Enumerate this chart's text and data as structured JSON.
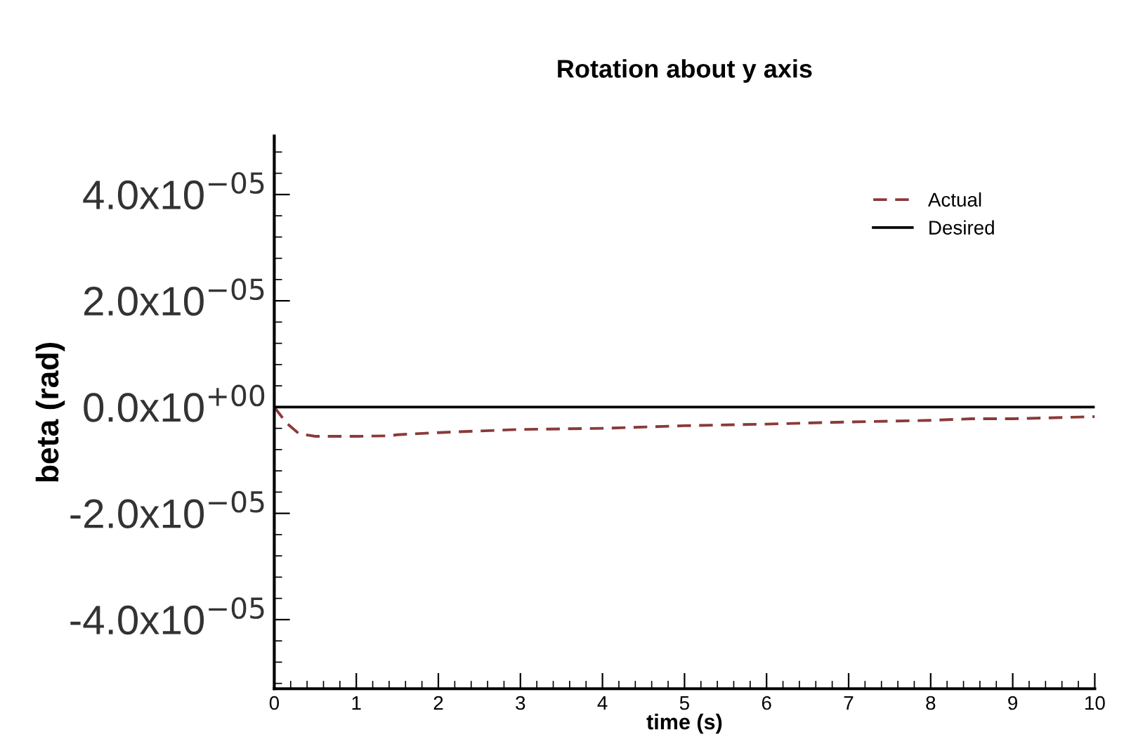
{
  "chart_data": {
    "type": "line",
    "title": "Rotation about y axis",
    "xlabel": "time (s)",
    "ylabel": "beta (rad)",
    "xlim": [
      0,
      10
    ],
    "xticks": [
      0,
      1,
      2,
      3,
      4,
      5,
      6,
      7,
      8,
      9,
      10
    ],
    "ylim": [
      -5.3e-05,
      5.1e-05
    ],
    "yticks": [
      {
        "value": -4e-05,
        "label": "-4.0x10$^{−05}$"
      },
      {
        "value": -2e-05,
        "label": "-2.0x10$^{−05}$"
      },
      {
        "value": 0,
        "label": "0.0x10$^{+00}$"
      },
      {
        "value": 2e-05,
        "label": "2.0x10$^{−05}$"
      },
      {
        "value": 4e-05,
        "label": "4.0x10$^{−05}$"
      }
    ],
    "grid": false,
    "legend": "top right",
    "series": [
      {
        "name": "Actual",
        "color": "#8b3a3a",
        "line_style": "dashed",
        "x": [
          0,
          0.15,
          0.3,
          0.5,
          1,
          1.4,
          1.5,
          2,
          3,
          4,
          5,
          6,
          7,
          8,
          8.5,
          9,
          10
        ],
        "values": [
          0,
          -3e-06,
          -5e-06,
          -5.5e-06,
          -5.5e-06,
          -5.4e-06,
          -5.2e-06,
          -4.8e-06,
          -4.2e-06,
          -4e-06,
          -3.5e-06,
          -3.2e-06,
          -2.8e-06,
          -2.5e-06,
          -2.2e-06,
          -2.2e-06,
          -1.8e-06
        ]
      },
      {
        "name": "Desired",
        "color": "#000000",
        "line_style": "solid",
        "x": [
          0,
          10
        ],
        "values": [
          0,
          0
        ]
      }
    ]
  }
}
